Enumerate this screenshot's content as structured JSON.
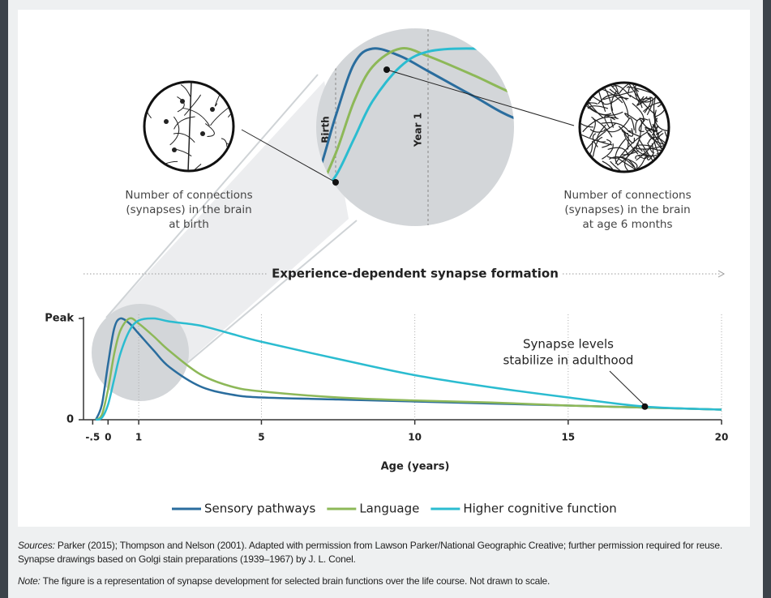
{
  "chart_data": {
    "type": "line",
    "x": [
      -0.4,
      -0.2,
      0,
      0.2,
      0.4,
      0.7,
      1,
      1.5,
      2,
      3,
      4,
      5,
      7.5,
      10,
      12.5,
      15,
      17.5,
      20
    ],
    "series": [
      {
        "name": "Sensory pathways",
        "color": "#2a6d9e",
        "values": [
          0,
          15,
          55,
          90,
          100,
          95,
          85,
          68,
          52,
          33,
          25,
          22,
          20,
          18,
          16,
          14,
          12,
          10
        ]
      },
      {
        "name": "Language",
        "color": "#8db858",
        "values": [
          0,
          5,
          30,
          65,
          88,
          100,
          95,
          82,
          68,
          45,
          33,
          28,
          22,
          19,
          17,
          14,
          12,
          10
        ]
      },
      {
        "name": "Higher cognitive function",
        "color": "#2bbcd0",
        "values": [
          0,
          2,
          15,
          40,
          65,
          88,
          98,
          100,
          97,
          93,
          85,
          77,
          60,
          44,
          32,
          22,
          13,
          10
        ]
      }
    ],
    "xlim": [
      -0.8,
      20
    ],
    "xticks": [
      {
        "value": -0.5,
        "label": "-.5"
      },
      0,
      1,
      5,
      10,
      15,
      20
    ],
    "ylim": [
      0,
      100
    ],
    "yticks": [
      0,
      {
        "value": 100,
        "label": "Peak"
      }
    ],
    "xlabel": "Age (years)",
    "grid": true,
    "legend": "bottom",
    "banner": "Experience-dependent synapse formation",
    "stabilize_note": [
      "Synapse levels",
      "stabilize in adulthood"
    ],
    "birth_caption": [
      "Number of connections",
      "(synapses) in the brain",
      "at birth"
    ],
    "six_month_caption": [
      "Number of connections",
      "(synapses) in the brain",
      "at age 6 months"
    ],
    "inset_markers": [
      {
        "x": 0,
        "label": "Birth"
      },
      {
        "x": 1,
        "label": "Year 1"
      }
    ]
  },
  "notes": {
    "sources_label": "Sources:",
    "sources_text": "Parker (2015); Thompson and Nelson (2001). Adapted with permission from Lawson Parker/National Geographic Creative; further permission required for reuse. Synapse drawings based on Golgi stain preparations (1939–1967) by J. L. Conel.",
    "note_label": "Note:",
    "note_text": "The figure is a representation of synapse development for selected brain functions over the life course. Not drawn to scale."
  }
}
